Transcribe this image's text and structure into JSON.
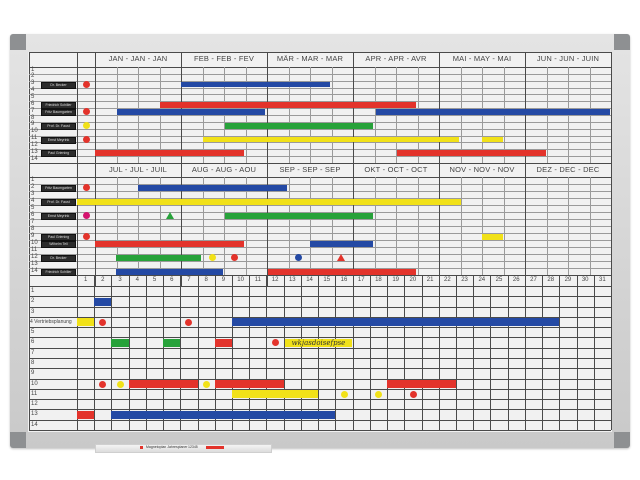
{
  "colors": {
    "red": "#e3332b",
    "blue": "#2449a4",
    "green": "#27a23a",
    "yellow": "#f1e118",
    "magenta": "#d4146e",
    "frame": "#c9c9c9",
    "board": "#f1f1f1"
  },
  "top_months": [
    "JAN - JAN - JAN",
    "FEB - FEB - FEV",
    "MÄR - MAR - MAR",
    "APR - APR - AVR",
    "MAI - MAY - MAI",
    "JUN - JUN - JUIN"
  ],
  "mid_months": [
    "JUL - JUL - JUIL",
    "AUG - AUG - AOU",
    "SEP - SEP - SEP",
    "OKT - OCT - OCT",
    "NOV - NOV - NOV",
    "DEZ - DEC - DEC"
  ],
  "row_numbers": [
    "1",
    "2",
    "3",
    "4",
    "5",
    "6",
    "7",
    "8",
    "9",
    "10",
    "11",
    "12",
    "13",
    "14"
  ],
  "day_numbers": [
    "1",
    "2",
    "3",
    "4",
    "5",
    "6",
    "7",
    "8",
    "9",
    "10",
    "11",
    "12",
    "13",
    "14",
    "15",
    "16",
    "17",
    "18",
    "19",
    "20",
    "21",
    "22",
    "23",
    "24",
    "25",
    "26",
    "27",
    "28",
    "29",
    "30",
    "31"
  ],
  "top_name_tags": [
    {
      "row": 3,
      "name": "Dr. Becker"
    },
    {
      "row": 6,
      "name": "Friedrich Schiller"
    },
    {
      "row": 7,
      "name": "Fritz Baumgarten"
    },
    {
      "row": 9,
      "name": "Prof. Dr. Faust"
    },
    {
      "row": 11,
      "name": "Ernst Meyrink"
    },
    {
      "row": 13,
      "name": "Paul Griening"
    }
  ],
  "mid_name_tags": [
    {
      "row": 2,
      "name": "Fritz Baumgarten"
    },
    {
      "row": 4,
      "name": "Prof. Dr. Faust"
    },
    {
      "row": 6,
      "name": "Ernst Meyrink"
    },
    {
      "row": 9,
      "name": "Paul Griening"
    },
    {
      "row": 10,
      "name": "Wilhelm Tell"
    },
    {
      "row": 12,
      "name": "Dr. Becker"
    },
    {
      "row": 14,
      "name": "Friedrich Schiller"
    }
  ],
  "bottom_row_label": {
    "row": 4,
    "text": "4 Vertriebsplanung"
  },
  "bottom_note": "wkjasdoisefpse",
  "tray_label": "Magnetoplan Jahresplaner",
  "tray_code": "12345"
}
